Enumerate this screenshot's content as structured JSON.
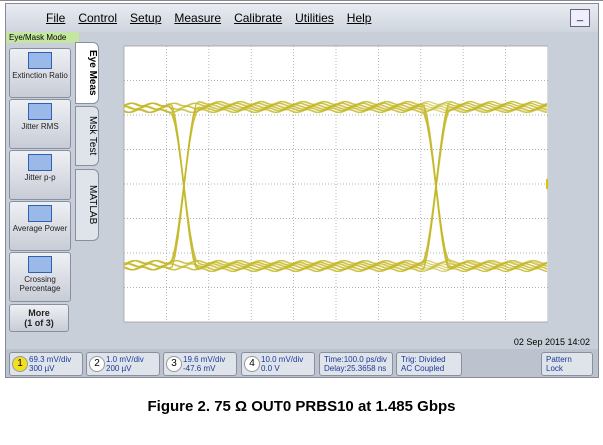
{
  "menu": {
    "items": [
      "File",
      "Control",
      "Setup",
      "Measure",
      "Calibrate",
      "Utilities",
      "Help"
    ],
    "minimize": "_"
  },
  "mode": "Eye/Mask Mode",
  "side_buttons": [
    "Extinction Ratio",
    "Jitter RMS",
    "Jitter p-p",
    "Average Power",
    "Crossing Percentage"
  ],
  "more_button": [
    "More",
    "(1 of 3)"
  ],
  "tabs": [
    "Eye Meas",
    "Msk Test",
    "MATLAB"
  ],
  "timestamp": "02 Sep 2015  14:02",
  "channels": [
    {
      "number": "1",
      "scale": "69.3 mV/div",
      "offset": "300 µV"
    },
    {
      "number": "2",
      "scale": "1.0 mV/div",
      "offset": "200 µV"
    },
    {
      "number": "3",
      "scale": "19.6 mV/div",
      "offset": "-47.6 mV"
    },
    {
      "number": "4",
      "scale": "10.0 mV/div",
      "offset": "0.0 V"
    }
  ],
  "timebase": [
    "Time:100.0 ps/div",
    "Delay:25.3658 ns"
  ],
  "trigger": [
    "Trig: Divided",
    "AC Coupled"
  ],
  "pattern_lock": [
    "Pattern",
    "Lock"
  ],
  "caption": "Figure 2. 75 Ω OUT0 PRBS10 at 1.485 Gbps"
}
